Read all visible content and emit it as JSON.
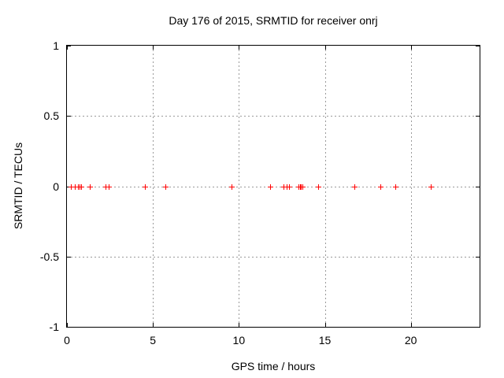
{
  "chart_data": {
    "type": "scatter",
    "title": "Day 176 of 2015, SRMTID for receiver onrj",
    "xlabel": "GPS time / hours",
    "ylabel": "SRMTID / TECUs",
    "xlim": [
      0,
      24
    ],
    "ylim": [
      -1,
      1
    ],
    "xticks": [
      0,
      5,
      10,
      15,
      20
    ],
    "xtick_labels": [
      "0",
      "5",
      "10",
      "15",
      "20"
    ],
    "yticks": [
      1,
      0.5,
      0,
      -0.5,
      -1
    ],
    "ytick_labels": [
      "1",
      "0.5",
      "0",
      "-0.5",
      "-1"
    ],
    "grid": true,
    "legend": "none",
    "marker": "plus",
    "colors": {
      "marker": "#ff0000",
      "grid": "#9a9a9a",
      "axis": "#000000",
      "background": "#ffffff"
    },
    "series": [
      {
        "name": "",
        "x": [
          0.21,
          0.48,
          0.62,
          0.71,
          0.82,
          1.32,
          2.23,
          2.41,
          4.53,
          5.74,
          9.58,
          11.82,
          12.58,
          12.78,
          12.9,
          13.45,
          13.54,
          13.61,
          13.7,
          14.6,
          16.74,
          18.21,
          19.12,
          21.15
        ],
        "y": [
          0,
          0,
          0,
          0,
          0,
          0,
          0,
          0,
          0,
          0,
          0,
          0,
          0,
          0,
          0,
          0,
          0,
          0,
          0,
          0,
          0,
          0,
          0,
          0
        ]
      }
    ]
  }
}
